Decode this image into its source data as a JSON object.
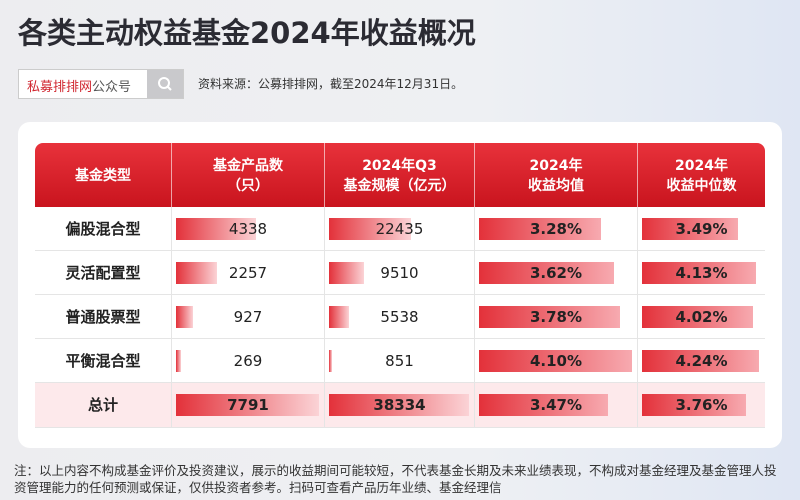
{
  "header": {
    "title": "各类主动权益基金2024年收益概况",
    "brand": "私募排排网",
    "brand_suffix": "公众号",
    "source": "资料来源：公募排排网，截至2024年12月31日。"
  },
  "table": {
    "columns": [
      [
        "基金类型"
      ],
      [
        "基金产品数",
        "（只）"
      ],
      [
        "2024年Q3",
        "基金规模（亿元）"
      ],
      [
        "2024年",
        "收益均值"
      ],
      [
        "2024年",
        "收益中位数"
      ]
    ],
    "rows": [
      [
        "偏股混合型",
        4338,
        22435,
        {
          "value": 3.28,
          "label": "3.28%"
        },
        {
          "value": 3.49,
          "label": "3.49%"
        }
      ],
      [
        "灵活配置型",
        2257,
        9510,
        {
          "value": 3.62,
          "label": "3.62%"
        },
        {
          "value": 4.13,
          "label": "4.13%"
        }
      ],
      [
        "普通股票型",
        927,
        5538,
        {
          "value": 3.78,
          "label": "3.78%"
        },
        {
          "value": 4.02,
          "label": "4.02%"
        }
      ],
      [
        "平衡混合型",
        269,
        851,
        {
          "value": 4.1,
          "label": "4.10%"
        },
        {
          "value": 4.24,
          "label": "4.24%"
        }
      ]
    ],
    "total": [
      "总计",
      7791,
      38334,
      {
        "value": 3.47,
        "label": "3.47%"
      },
      {
        "value": 3.76,
        "label": "3.76%"
      }
    ]
  },
  "note": "注：以上内容不构成基金评价及投资建议，展示的收益期间可能较短，不代表基金长期及未来业绩表现，不构成对基金经理及基金管理人投资管理能力的任何预测或保证，仅供投资者参考。扫码可查看产品历年业绩、基金经理信"
}
